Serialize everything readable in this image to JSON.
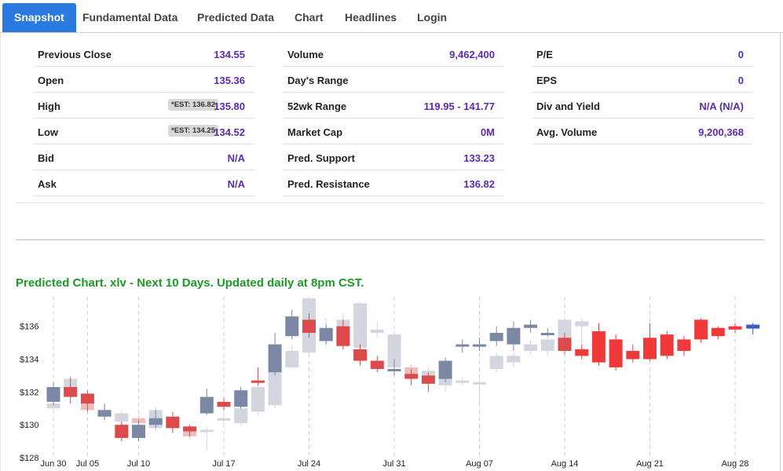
{
  "tabs": [
    {
      "label": "Snapshot",
      "active": true
    },
    {
      "label": "Fundamental Data",
      "active": false
    },
    {
      "label": "Predicted Data",
      "active": false
    },
    {
      "label": "Chart",
      "active": false
    },
    {
      "label": "Headlines",
      "active": false
    },
    {
      "label": "Login",
      "active": false
    }
  ],
  "stats": {
    "col1": [
      {
        "label": "Previous Close",
        "value": "134.55"
      },
      {
        "label": "Open",
        "value": "135.36"
      },
      {
        "label": "High",
        "value": "135.80",
        "badge": "*EST: 136.82"
      },
      {
        "label": "Low",
        "value": "134.52",
        "badge": "*EST: 134.25"
      },
      {
        "label": "Bid",
        "value": "N/A"
      },
      {
        "label": "Ask",
        "value": "N/A"
      }
    ],
    "col2": [
      {
        "label": "Volume",
        "value": "9,462,400"
      },
      {
        "label": "Day's Range",
        "value": ""
      },
      {
        "label": "52wk Range",
        "value": "119.95 - 141.77"
      },
      {
        "label": "Market Cap",
        "value": "0M"
      },
      {
        "label": "Pred. Support",
        "value": "133.23"
      },
      {
        "label": "Pred. Resistance",
        "value": "136.82"
      }
    ],
    "col3": [
      {
        "label": "P/E",
        "value": "0"
      },
      {
        "label": "EPS",
        "value": "0"
      },
      {
        "label": "Div and Yield",
        "value": "N/A (N/A)"
      },
      {
        "label": "Avg. Volume",
        "value": "9,200,368"
      }
    ]
  },
  "chart_title": "Predicted Chart. xlv - Next 10 Days. Updated daily at 8pm CST.",
  "colors": {
    "accent": "#2a7ae2",
    "value": "#5b2bb0",
    "title_green": "#1b9a25"
  },
  "chart_data": {
    "type": "candlestick",
    "ylim": [
      128,
      137.8
    ],
    "yticks": [
      128,
      130,
      132,
      134,
      136
    ],
    "ytick_labels": [
      "$128",
      "$130",
      "$132",
      "$134",
      "$136"
    ],
    "xtick_labels": [
      {
        "label": "Jun 30",
        "i": 0
      },
      {
        "label": "Jul 05",
        "i": 2
      },
      {
        "label": "Jul 10",
        "i": 5
      },
      {
        "label": "Jul 17",
        "i": 10
      },
      {
        "label": "Jul 24",
        "i": 15
      },
      {
        "label": "Jul 31",
        "i": 20
      },
      {
        "label": "Aug 07",
        "i": 25
      },
      {
        "label": "Aug 14",
        "i": 30
      },
      {
        "label": "Aug 21",
        "i": 35
      },
      {
        "label": "Aug 28",
        "i": 40
      }
    ],
    "actual": [
      {
        "o": 131.4,
        "c": 132.3,
        "h": 132.6,
        "l": 131.2
      },
      {
        "o": 132.3,
        "c": 131.7,
        "h": 132.9,
        "l": 131.3
      },
      {
        "o": 131.9,
        "c": 131.3,
        "h": 132.1,
        "l": 130.8
      },
      {
        "o": 130.5,
        "c": 130.9,
        "h": 131.3,
        "l": 130.3
      },
      {
        "o": 130.0,
        "c": 129.2,
        "h": 130.2,
        "l": 129.0
      },
      {
        "o": 129.2,
        "c": 130.0,
        "h": 130.3,
        "l": 129.0
      },
      {
        "o": 130.0,
        "c": 130.4,
        "h": 130.9,
        "l": 129.8
      },
      {
        "o": 130.5,
        "c": 129.8,
        "h": 130.8,
        "l": 129.5
      },
      {
        "o": 129.9,
        "c": 129.6,
        "h": 130.0,
        "l": 129.3
      },
      {
        "o": 130.7,
        "c": 131.7,
        "h": 132.2,
        "l": 130.6
      },
      {
        "o": 131.4,
        "c": 131.1,
        "h": 131.6,
        "l": 130.9
      },
      {
        "o": 131.1,
        "c": 132.1,
        "h": 132.3,
        "l": 131.0
      },
      {
        "o": 132.7,
        "c": 132.6,
        "h": 133.5,
        "l": 132.4
      },
      {
        "o": 133.2,
        "c": 134.9,
        "h": 135.6,
        "l": 133.0
      },
      {
        "o": 135.4,
        "c": 136.6,
        "h": 137.0,
        "l": 135.2
      },
      {
        "o": 136.4,
        "c": 135.6,
        "h": 136.8,
        "l": 135.3
      },
      {
        "o": 135.1,
        "c": 135.9,
        "h": 136.1,
        "l": 134.9
      },
      {
        "o": 136.0,
        "c": 134.8,
        "h": 136.4,
        "l": 134.6
      },
      {
        "o": 134.6,
        "c": 133.9,
        "h": 134.9,
        "l": 133.6
      },
      {
        "o": 133.9,
        "c": 133.4,
        "h": 134.2,
        "l": 133.2
      },
      {
        "o": 133.3,
        "c": 133.4,
        "h": 134.0,
        "l": 133.0
      },
      {
        "o": 133.1,
        "c": 132.8,
        "h": 133.4,
        "l": 132.4
      },
      {
        "o": 133.0,
        "c": 132.5,
        "h": 133.2,
        "l": 132.0
      },
      {
        "o": 132.8,
        "c": 133.9,
        "h": 134.1,
        "l": 132.6
      },
      {
        "o": 134.8,
        "c": 134.9,
        "h": 135.2,
        "l": 134.4
      },
      {
        "o": 134.8,
        "c": 134.9,
        "h": 135.3,
        "l": 134.5
      },
      {
        "o": 135.1,
        "c": 135.6,
        "h": 136.0,
        "l": 134.8
      },
      {
        "o": 134.9,
        "c": 135.9,
        "h": 136.3,
        "l": 134.5
      },
      {
        "o": 135.9,
        "c": 136.1,
        "h": 136.4,
        "l": 135.6
      },
      {
        "o": 135.6,
        "c": 135.6,
        "h": 135.9,
        "l": 135.4
      },
      {
        "o": 135.3,
        "c": 134.5,
        "h": 135.6,
        "l": 134.3
      }
    ],
    "predicted": [
      {
        "o": 131.0,
        "c": 131.3,
        "h": 131.5,
        "l": 130.8
      },
      {
        "o": 131.8,
        "c": 132.8,
        "h": 133.0,
        "l": 131.6
      },
      {
        "o": 131.5,
        "c": 130.9,
        "h": 131.8,
        "l": 130.6
      },
      {
        "o": 130.9,
        "c": 130.5,
        "h": 131.2,
        "l": 130.2
      },
      {
        "o": 130.2,
        "c": 130.7,
        "h": 130.9,
        "l": 130.0
      },
      {
        "o": 130.4,
        "c": 130.1,
        "h": 130.6,
        "l": 129.8
      },
      {
        "o": 129.8,
        "c": 130.9,
        "h": 131.1,
        "l": 129.6
      },
      {
        "o": 130.3,
        "c": 129.8,
        "h": 130.5,
        "l": 129.5
      },
      {
        "o": 129.6,
        "c": 129.3,
        "h": 129.8,
        "l": 129.1
      },
      {
        "o": 129.7,
        "c": 129.7,
        "h": 129.9,
        "l": 128.4
      },
      {
        "o": 130.3,
        "c": 130.4,
        "h": 131.3,
        "l": 130.1
      },
      {
        "o": 130.1,
        "c": 131.0,
        "h": 131.2,
        "l": 129.9
      },
      {
        "o": 130.8,
        "c": 132.3,
        "h": 132.6,
        "l": 130.6
      },
      {
        "o": 131.2,
        "c": 134.2,
        "h": 134.5,
        "l": 131.0
      },
      {
        "o": 133.5,
        "c": 134.5,
        "h": 134.8,
        "l": 133.4
      },
      {
        "o": 134.4,
        "c": 137.7,
        "h": 137.8,
        "l": 134.1
      },
      {
        "o": 135.1,
        "c": 135.8,
        "h": 136.5,
        "l": 134.8
      },
      {
        "o": 135.1,
        "c": 136.4,
        "h": 136.8,
        "l": 134.9
      },
      {
        "o": 134.7,
        "c": 137.4,
        "h": 137.5,
        "l": 134.6
      },
      {
        "o": 135.6,
        "c": 135.8,
        "h": 136.3,
        "l": 135.3
      },
      {
        "o": 133.5,
        "c": 135.5,
        "h": 135.7,
        "l": 133.2
      },
      {
        "o": 133.5,
        "c": 132.9,
        "h": 133.7,
        "l": 132.6
      },
      {
        "o": 132.9,
        "c": 133.3,
        "h": 133.5,
        "l": 132.7
      },
      {
        "o": 132.4,
        "c": 133.0,
        "h": 133.2,
        "l": 132.0
      },
      {
        "o": 132.6,
        "c": 132.7,
        "h": 132.9,
        "l": 132.4
      },
      {
        "o": 132.5,
        "c": 132.6,
        "h": 132.8,
        "l": 131.2
      },
      {
        "o": 133.4,
        "c": 134.2,
        "h": 134.4,
        "l": 133.2
      },
      {
        "o": 133.8,
        "c": 134.2,
        "h": 134.4,
        "l": 133.5
      },
      {
        "o": 134.5,
        "c": 134.9,
        "h": 135.1,
        "l": 134.3
      },
      {
        "o": 134.5,
        "c": 135.2,
        "h": 135.4,
        "l": 134.2
      },
      {
        "o": 135.0,
        "c": 136.4,
        "h": 136.6,
        "l": 134.9
      },
      {
        "o": 136.0,
        "c": 136.3,
        "h": 136.5,
        "l": 135.0
      }
    ],
    "forecast": [
      {
        "i": 31,
        "o": 134.6,
        "c": 134.2,
        "h": 134.9,
        "l": 134.0
      },
      {
        "i": 32,
        "o": 135.7,
        "c": 133.8,
        "h": 136.2,
        "l": 133.6
      },
      {
        "i": 33,
        "o": 135.2,
        "c": 133.5,
        "h": 135.5,
        "l": 133.3
      },
      {
        "i": 34,
        "o": 134.5,
        "c": 134.0,
        "h": 134.9,
        "l": 133.8
      },
      {
        "i": 35,
        "o": 135.3,
        "c": 134.0,
        "h": 136.2,
        "l": 133.9
      },
      {
        "i": 36,
        "o": 135.5,
        "c": 134.2,
        "h": 135.7,
        "l": 134.0
      },
      {
        "i": 37,
        "o": 135.2,
        "c": 134.5,
        "h": 135.4,
        "l": 134.2
      },
      {
        "i": 38,
        "o": 136.4,
        "c": 135.2,
        "h": 136.5,
        "l": 135.0
      },
      {
        "i": 39,
        "o": 135.9,
        "c": 135.4,
        "h": 136.0,
        "l": 135.2
      },
      {
        "i": 40,
        "o": 136.0,
        "c": 135.8,
        "h": 136.2,
        "l": 135.6
      }
    ]
  }
}
